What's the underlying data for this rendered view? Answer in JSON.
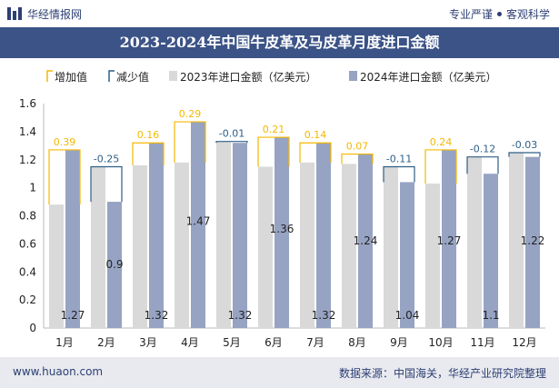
{
  "header": {
    "brand": "华经情报网",
    "tag1": "专业严谨",
    "tag2": "客观科学"
  },
  "chart_data": {
    "type": "bar",
    "title": "2023-2024年中国牛皮革及马皮革月度进口金额",
    "legend": [
      "增加值",
      "减少值",
      "2023年进口金额（亿美元）",
      "2024年进口金额（亿美元）"
    ],
    "categories": [
      "1月",
      "2月",
      "3月",
      "4月",
      "5月",
      "6月",
      "7月",
      "8月",
      "9月",
      "10月",
      "11月",
      "12月"
    ],
    "series": [
      {
        "name": "2023年进口金额（亿美元）",
        "values": [
          0.88,
          1.15,
          1.16,
          1.18,
          1.33,
          1.15,
          1.18,
          1.17,
          1.15,
          1.03,
          1.22,
          1.25
        ]
      },
      {
        "name": "2024年进口金额（亿美元）",
        "values": [
          1.27,
          0.9,
          1.32,
          1.47,
          1.32,
          1.36,
          1.32,
          1.24,
          1.04,
          1.27,
          1.1,
          1.22
        ]
      }
    ],
    "change_labels": [
      "0.39",
      "-0.25",
      "0.16",
      "0.29",
      "-0.01",
      "0.21",
      "0.14",
      "0.07",
      "-0.11",
      "0.24",
      "-0.12",
      "-0.03"
    ],
    "value_labels": [
      "1.27",
      "0.9",
      "1.32",
      "1.47",
      "1.32",
      "1.36",
      "1.32",
      "1.24",
      "1.04",
      "1.27",
      "1.1",
      "1.22"
    ],
    "yticks": [
      "0",
      "0.2",
      "0.4",
      "0.6",
      "0.8",
      "1",
      "1.2",
      "1.4",
      "1.6"
    ],
    "ylim": [
      0,
      1.6
    ],
    "colors": {
      "increase": "#f5b800",
      "decrease": "#2e5f87",
      "y2023": "#d9d9d9",
      "y2024": "#97a3c3"
    },
    "legend_position": "top-left"
  },
  "footer": {
    "url": "www.huaon.com",
    "source": "数据来源：中国海关，华经产业研究院整理"
  }
}
